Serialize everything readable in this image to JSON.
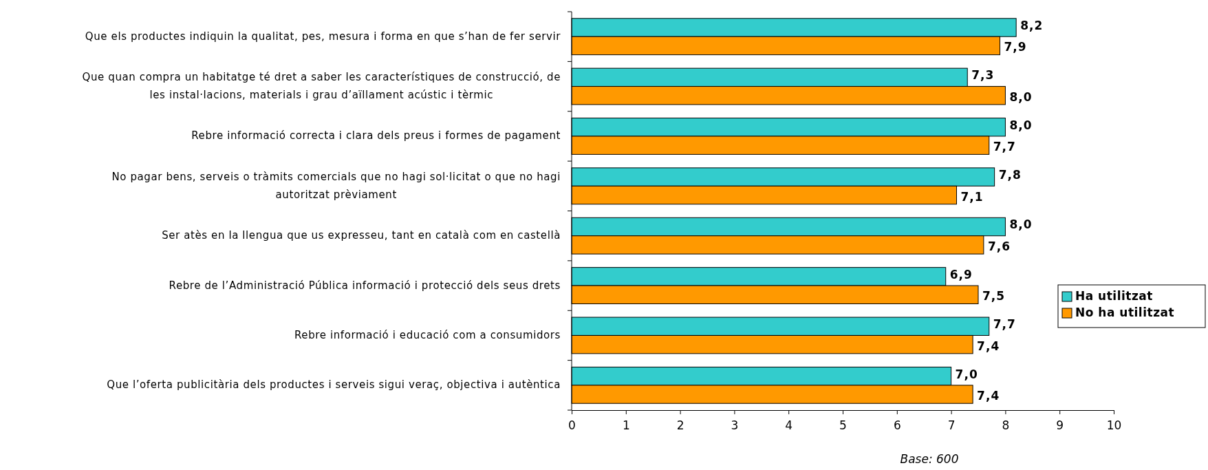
{
  "chart_data": {
    "type": "bar",
    "orientation": "horizontal",
    "categories": [
      "Que els productes indiquin la qualitat, pes, mesura i forma en que s’han de fer servir",
      "Que quan compra un habitatge té dret a saber les característiques de construcció, de les instal·lacions, materials i grau d’aïllament acústic i tèrmic",
      "Rebre informació correcta i clara dels preus i formes de pagament",
      "No pagar bens, serveis o tràmits comercials que no hagi sol·licitat o que no hagi autoritzat prèviament",
      "Ser atès en la llengua que us expresseu, tant en català com en castellà",
      "Rebre de l’Administració Pública informació i protecció dels seus drets",
      "Rebre informació i educació com a consumidors",
      "Que l’oferta publicitària dels productes i serveis sigui veraç, objectiva i autèntica"
    ],
    "series": [
      {
        "name": "Ha utilitzat",
        "color": "#33cccc",
        "values": [
          8.2,
          7.3,
          8.0,
          7.8,
          8.0,
          6.9,
          7.7,
          7.0
        ],
        "value_labels": [
          "8,2",
          "7,3",
          "8,0",
          "7,8",
          "8,0",
          "6,9",
          "7,7",
          "7,0"
        ]
      },
      {
        "name": "No ha utilitzat",
        "color": "#ff9900",
        "values": [
          7.9,
          8.0,
          7.7,
          7.1,
          7.6,
          7.5,
          7.4,
          7.4
        ],
        "value_labels": [
          "7,9",
          "8,0",
          "7,7",
          "7,1",
          "7,6",
          "7,5",
          "7,4",
          "7,4"
        ]
      }
    ],
    "xlim": [
      0,
      10
    ],
    "xticks": [
      0,
      1,
      2,
      3,
      4,
      5,
      6,
      7,
      8,
      9,
      10
    ],
    "legend": "right",
    "grid": false,
    "annotations": [
      "Base: 600"
    ]
  }
}
